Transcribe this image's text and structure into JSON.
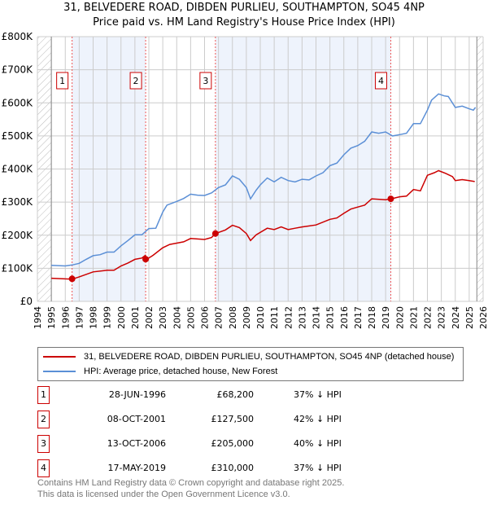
{
  "chart_data": {
    "type": "line",
    "title": "31, BELVEDERE ROAD, DIBDEN PURLIEU, SOUTHAMPTON, SO45 4NP",
    "subtitle": "Price paid vs. HM Land Registry's House Price Index (HPI)",
    "xlim": [
      1994,
      2026
    ],
    "ylim": [
      0,
      800000
    ],
    "x_ticks": [
      1994,
      1995,
      1996,
      1997,
      1998,
      1999,
      2000,
      2001,
      2002,
      2003,
      2004,
      2005,
      2006,
      2007,
      2008,
      2009,
      2010,
      2011,
      2012,
      2013,
      2014,
      2015,
      2016,
      2017,
      2018,
      2019,
      2020,
      2021,
      2022,
      2023,
      2024,
      2025,
      2026
    ],
    "y_ticks": [
      0,
      100000,
      200000,
      300000,
      400000,
      500000,
      600000,
      700000,
      800000
    ],
    "y_tick_labels": [
      "£0",
      "£100K",
      "£200K",
      "£300K",
      "£400K",
      "£500K",
      "£600K",
      "£700K",
      "£800K"
    ],
    "grid": true,
    "legend_position": "below",
    "series": [
      {
        "name": "31, BELVEDERE ROAD, DIBDEN PURLIEU, SOUTHAMPTON, SO45 4NP (detached house)",
        "color": "#cc0000",
        "x": [
          1995,
          1996.5,
          1997,
          1998,
          1999,
          1999.5,
          2000,
          2000.5,
          2001,
          2001.5,
          2001.75,
          2001.85,
          2002.3,
          2003,
          2003.5,
          2004,
          2004.5,
          2005,
          2006,
          2006.5,
          2006.8,
          2007.5,
          2008,
          2008.5,
          2009,
          2009.3,
          2009.7,
          2010.5,
          2011,
          2011.5,
          2012,
          2012.5,
          2013,
          2014,
          2015,
          2015.5,
          2016,
          2016.5,
          2017,
          2017.5,
          2018,
          2019,
          2019.4,
          2020,
          2020.5,
          2021,
          2021.5,
          2022,
          2022.5,
          2022.8,
          2023.3,
          2023.8,
          2024,
          2024.5,
          2025,
          2025.4
        ],
        "y": [
          70000,
          67000,
          74000,
          89000,
          94000,
          94000,
          107000,
          116000,
          127000,
          131000,
          139000,
          127000,
          139000,
          162000,
          172000,
          176000,
          180000,
          190000,
          187000,
          193000,
          205000,
          216000,
          230000,
          223000,
          205000,
          184000,
          201000,
          221000,
          217000,
          225000,
          217000,
          221000,
          225000,
          231000,
          248000,
          252000,
          266000,
          279000,
          285000,
          291000,
          310000,
          307000,
          310000,
          316000,
          318000,
          338000,
          334000,
          381000,
          389000,
          395000,
          387000,
          377000,
          365000,
          368000,
          365000,
          362000
        ]
      },
      {
        "name": "HPI: Average price, detached house, New Forest",
        "color": "#5b8fd6",
        "x": [
          1995,
          1996,
          1996.5,
          1997,
          1997.5,
          1998,
          1998.5,
          1999,
          1999.5,
          2000,
          2000.5,
          2001,
          2001.5,
          2002,
          2002.5,
          2003,
          2003.3,
          2004,
          2004.5,
          2005,
          2005.5,
          2006,
          2006.5,
          2007,
          2007.5,
          2008,
          2008.5,
          2009,
          2009.3,
          2009.7,
          2010,
          2010.5,
          2011,
          2011.5,
          2012,
          2012.5,
          2013,
          2013.5,
          2014,
          2014.5,
          2015,
          2015.5,
          2016,
          2016.5,
          2017,
          2017.5,
          2018,
          2018.5,
          2019,
          2019.5,
          2020,
          2020.5,
          2021,
          2021.5,
          2022,
          2022.3,
          2022.8,
          2023.2,
          2023.5,
          2024,
          2024.5,
          2025,
          2025.3,
          2025.45
        ],
        "y": [
          109000,
          107000,
          110000,
          115000,
          127000,
          138000,
          141000,
          149000,
          149000,
          168000,
          184000,
          201000,
          201000,
          220000,
          221000,
          270000,
          291000,
          302000,
          311000,
          324000,
          321000,
          320000,
          328000,
          344000,
          352000,
          379000,
          369000,
          344000,
          310000,
          336000,
          352000,
          373000,
          361000,
          375000,
          365000,
          361000,
          369000,
          367000,
          379000,
          389000,
          410000,
          418000,
          443000,
          463000,
          471000,
          484000,
          512000,
          508000,
          512000,
          500000,
          504000,
          508000,
          537000,
          537000,
          578000,
          608000,
          627000,
          621000,
          619000,
          586000,
          590000,
          582000,
          578000,
          586000
        ]
      }
    ],
    "sales": [
      {
        "label": "1",
        "x": 1996.49,
        "price": 68200,
        "date": "28-JUN-1996",
        "price_text": "£68,200",
        "hpi": "37% ↓ HPI"
      },
      {
        "label": "2",
        "x": 2001.77,
        "price": 127500,
        "date": "08-OCT-2001",
        "price_text": "£127,500",
        "hpi": "42% ↓ HPI"
      },
      {
        "label": "3",
        "x": 2006.78,
        "price": 205000,
        "date": "13-OCT-2006",
        "price_text": "£205,000",
        "hpi": "40% ↓ HPI"
      },
      {
        "label": "4",
        "x": 2019.37,
        "price": 310000,
        "date": "17-MAY-2019",
        "price_text": "£310,000",
        "hpi": "37% ↓ HPI"
      }
    ],
    "data_range": [
      1995,
      2025.55
    ]
  },
  "footer": {
    "line1": "Contains HM Land Registry data © Crown copyright and database right 2025.",
    "line2": "This data is licensed under the Open Government Licence v3.0."
  }
}
